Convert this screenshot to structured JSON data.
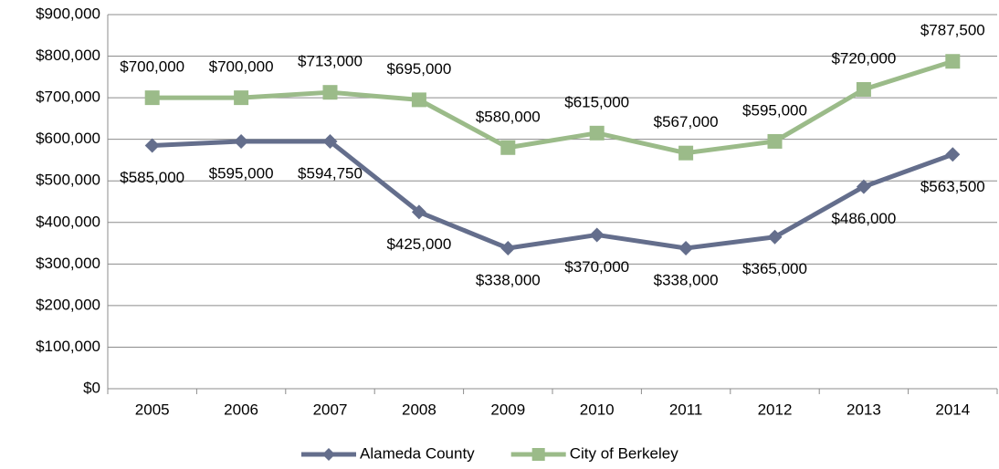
{
  "chart_data": {
    "type": "line",
    "categories": [
      "2005",
      "2006",
      "2007",
      "2008",
      "2009",
      "2010",
      "2011",
      "2012",
      "2013",
      "2014"
    ],
    "series": [
      {
        "name": "Alameda County",
        "color": "#646e8c",
        "marker": "diamond",
        "values": [
          585000,
          595000,
          594750,
          425000,
          338000,
          370000,
          338000,
          365000,
          486000,
          563500
        ],
        "value_labels": [
          "$585,000",
          "$595,000",
          "$594,750",
          "$425,000",
          "$338,000",
          "$370,000",
          "$338,000",
          "$365,000",
          "$486,000",
          "$563,500"
        ]
      },
      {
        "name": "City of Berkeley",
        "color": "#9bbb89",
        "marker": "square",
        "values": [
          700000,
          700000,
          713000,
          695000,
          580000,
          615000,
          567000,
          595000,
          720000,
          787500
        ],
        "value_labels": [
          "$700,000",
          "$700,000",
          "$713,000",
          "$695,000",
          "$580,000",
          "$615,000",
          "$567,000",
          "$595,000",
          "$720,000",
          "$787,500"
        ]
      }
    ],
    "ylim": [
      0,
      900000
    ],
    "yticks": [
      {
        "value": 0,
        "label": "$0"
      },
      {
        "value": 100000,
        "label": "$100,000"
      },
      {
        "value": 200000,
        "label": "$200,000"
      },
      {
        "value": 300000,
        "label": "$300,000"
      },
      {
        "value": 400000,
        "label": "$400,000"
      },
      {
        "value": 500000,
        "label": "$500,000"
      },
      {
        "value": 600000,
        "label": "$600,000"
      },
      {
        "value": 700000,
        "label": "$700,000"
      },
      {
        "value": 800000,
        "label": "$800,000"
      },
      {
        "value": 900000,
        "label": "$900,000"
      }
    ],
    "grid": true,
    "legend": "bottom"
  }
}
